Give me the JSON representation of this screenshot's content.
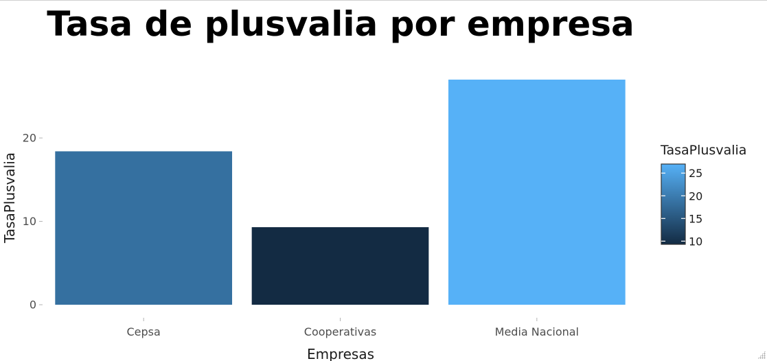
{
  "chart_data": {
    "type": "bar",
    "title": "Tasa de plusvalia por empresa",
    "xlabel": "Empresas",
    "ylabel": "TasaPlusvalia",
    "categories": [
      "Cepsa",
      "Cooperativas",
      "Media Nacional"
    ],
    "values": [
      18.4,
      9.3,
      27.0
    ],
    "ylim": [
      0,
      27.0
    ],
    "yticks": [
      0,
      10,
      20
    ],
    "grid": false,
    "legend": {
      "title": "TasaPlusvalia",
      "placement": "right",
      "range": [
        9.3,
        27.0
      ],
      "ticks": [
        10,
        15,
        20,
        25
      ],
      "color_low": "#132b43",
      "color_high": "#56b1f7"
    }
  }
}
